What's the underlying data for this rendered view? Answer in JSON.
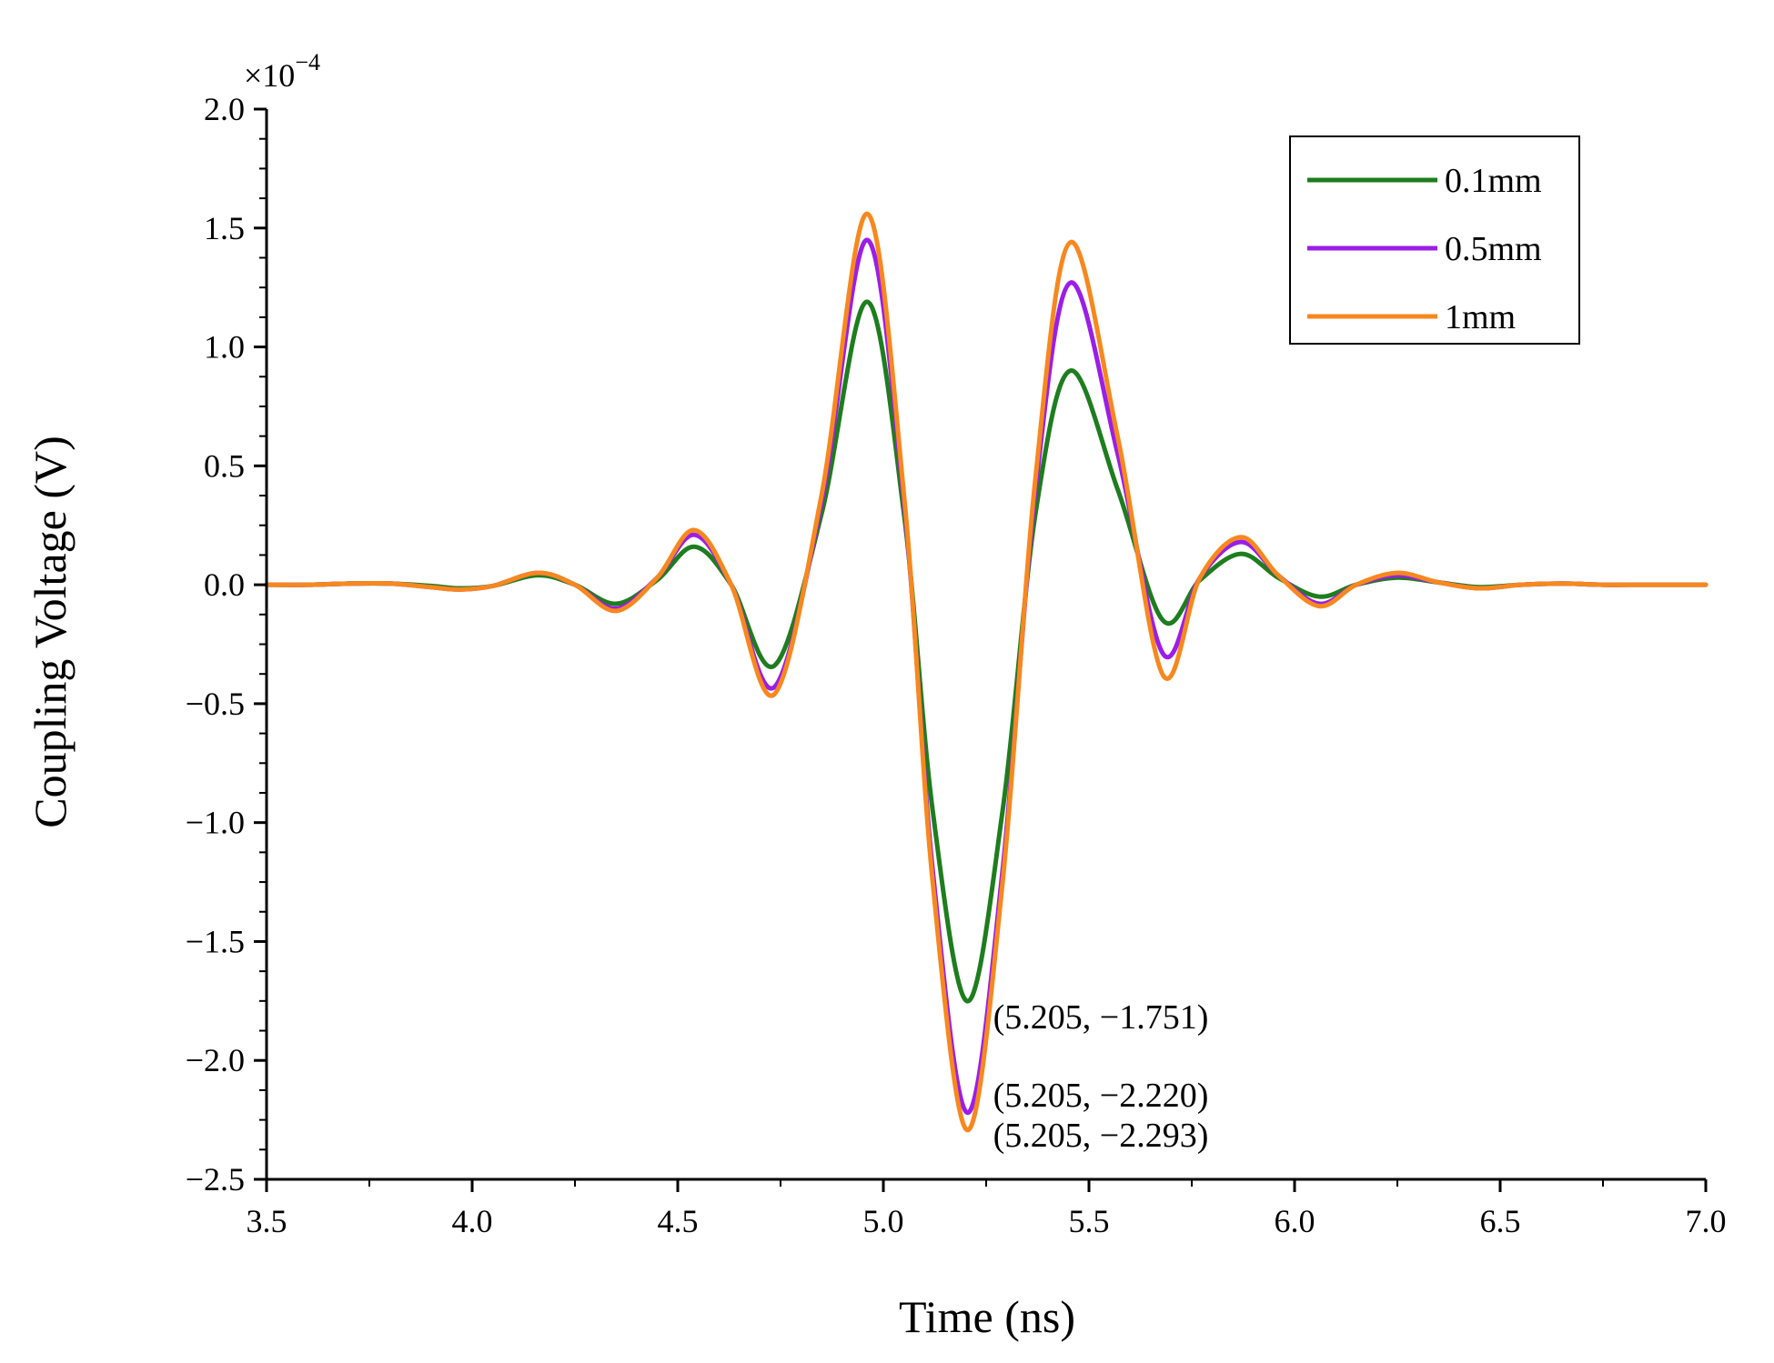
{
  "chart_data": {
    "type": "line",
    "title": "",
    "xlabel": "Time (ns)",
    "ylabel": "Coupling Voltage (V)",
    "y_multiplier": "×10",
    "y_multiplier_exponent": "−4",
    "xlim": [
      3.5,
      7.0
    ],
    "ylim": [
      -2.5,
      2.0
    ],
    "xticks": [
      3.5,
      4.0,
      4.5,
      5.0,
      5.5,
      6.0,
      6.5,
      7.0
    ],
    "xtick_labels": [
      "3.5",
      "4.0",
      "4.5",
      "5.0",
      "5.5",
      "6.0",
      "6.5",
      "7.0"
    ],
    "yticks": [
      2.0,
      1.5,
      1.0,
      0.5,
      0.0,
      -0.5,
      -1.0,
      -1.5,
      -2.0,
      -2.5
    ],
    "ytick_labels": [
      "2.0",
      "1.5",
      "1.0",
      "0.5",
      "0.0",
      "−0.5",
      "−1.0",
      "−1.5",
      "−2.0",
      "−2.5"
    ],
    "grid": false,
    "legend_position": "top-right",
    "series": [
      {
        "name": "0.1mm",
        "color": "#1e7d1e",
        "x": [
          3.5,
          3.6,
          3.7,
          3.8,
          3.9,
          3.97,
          4.05,
          4.16,
          4.25,
          4.35,
          4.45,
          4.54,
          4.63,
          4.735,
          4.85,
          4.96,
          5.05,
          5.12,
          5.205,
          5.29,
          5.37,
          5.455,
          5.57,
          5.68,
          5.77,
          5.87,
          5.96,
          6.06,
          6.15,
          6.25,
          6.35,
          6.45,
          6.55,
          6.65,
          6.75,
          6.85,
          7.0
        ],
        "y": [
          0.0,
          0.0,
          0.005,
          0.005,
          -0.005,
          -0.015,
          -0.005,
          0.04,
          0.0,
          -0.08,
          0.02,
          0.16,
          0.0,
          -0.34,
          0.3,
          1.19,
          0.3,
          -0.95,
          -1.751,
          -0.95,
          0.3,
          0.9,
          0.4,
          -0.15,
          0.02,
          0.13,
          0.03,
          -0.05,
          0.0,
          0.03,
          0.01,
          -0.01,
          0.0,
          0.005,
          0.0,
          0.0,
          0.0
        ]
      },
      {
        "name": "0.5mm",
        "color": "#9b1ee6",
        "x": [
          3.5,
          3.6,
          3.7,
          3.8,
          3.9,
          3.97,
          4.05,
          4.16,
          4.25,
          4.35,
          4.45,
          4.54,
          4.63,
          4.735,
          4.85,
          4.96,
          5.05,
          5.12,
          5.205,
          5.29,
          5.37,
          5.455,
          5.57,
          5.68,
          5.77,
          5.87,
          5.96,
          6.06,
          6.15,
          6.25,
          6.35,
          6.45,
          6.55,
          6.65,
          6.75,
          6.85,
          7.0
        ],
        "y": [
          0.0,
          0.0,
          0.005,
          0.005,
          -0.01,
          -0.02,
          -0.005,
          0.05,
          0.0,
          -0.1,
          0.03,
          0.21,
          0.0,
          -0.43,
          0.35,
          1.45,
          0.35,
          -1.2,
          -2.22,
          -1.2,
          0.4,
          1.27,
          0.55,
          -0.29,
          0.03,
          0.18,
          0.04,
          -0.08,
          0.0,
          0.04,
          0.01,
          -0.015,
          0.0,
          0.005,
          0.0,
          0.0,
          0.0
        ]
      },
      {
        "name": "1mm",
        "color": "#f7881e",
        "x": [
          3.5,
          3.6,
          3.7,
          3.8,
          3.9,
          3.97,
          4.05,
          4.16,
          4.25,
          4.35,
          4.45,
          4.54,
          4.63,
          4.735,
          4.85,
          4.96,
          5.05,
          5.12,
          5.205,
          5.29,
          5.37,
          5.455,
          5.57,
          5.68,
          5.77,
          5.87,
          5.96,
          6.06,
          6.15,
          6.25,
          6.35,
          6.45,
          6.55,
          6.65,
          6.75,
          6.85,
          7.0
        ],
        "y": [
          0.0,
          0.0,
          0.005,
          0.005,
          -0.01,
          -0.02,
          -0.005,
          0.05,
          0.0,
          -0.11,
          0.03,
          0.23,
          0.0,
          -0.46,
          0.38,
          1.56,
          0.38,
          -1.25,
          -2.293,
          -1.25,
          0.45,
          1.44,
          0.62,
          -0.38,
          0.03,
          0.2,
          0.04,
          -0.09,
          0.0,
          0.05,
          0.01,
          -0.015,
          0.0,
          0.005,
          0.0,
          0.0,
          0.0
        ]
      }
    ],
    "annotations": [
      {
        "text": "(5.205, −1.751)",
        "x": 5.205,
        "y": -1.751
      },
      {
        "text": "(5.205, −2.220)",
        "x": 5.205,
        "y": -2.22
      },
      {
        "text": "(5.205, −2.293)",
        "x": 5.205,
        "y": -2.293
      }
    ]
  }
}
